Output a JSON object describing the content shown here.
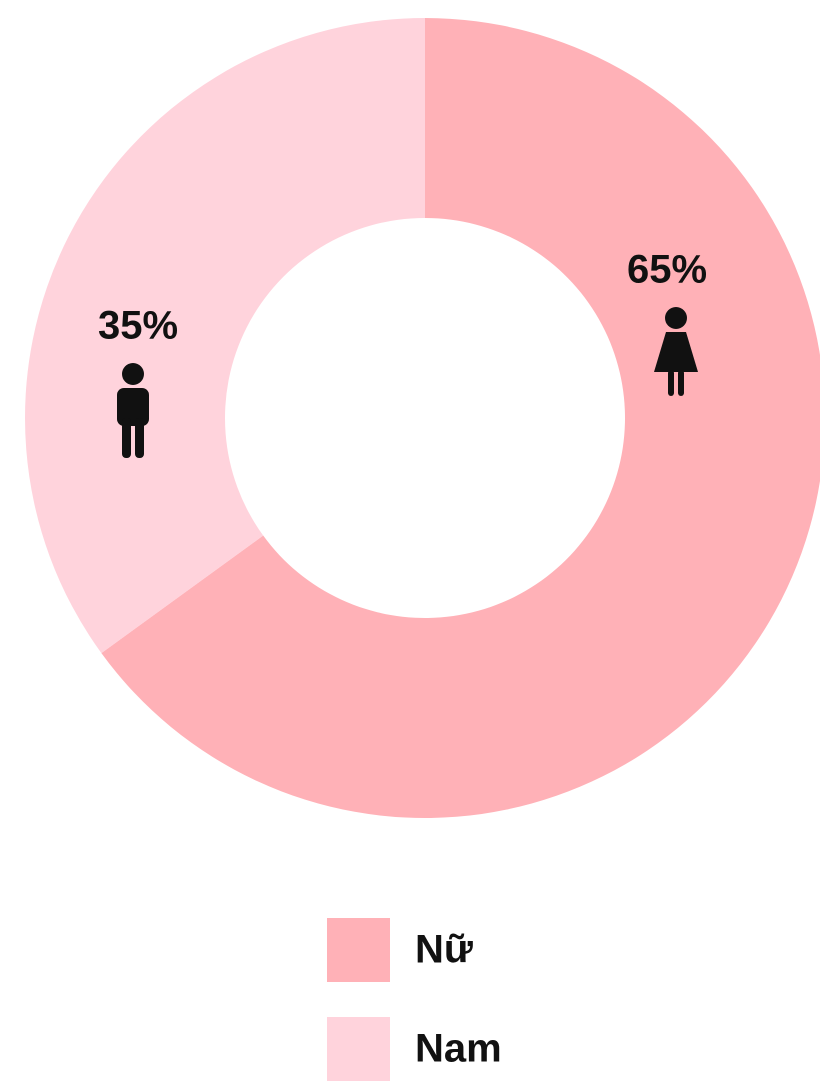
{
  "chart_data": {
    "type": "donut",
    "categories": [
      "Nữ",
      "Nam"
    ],
    "values": [
      65,
      35
    ],
    "value_labels": [
      "65%",
      "35%"
    ],
    "colors": [
      "#ffb1b7",
      "#ffd3dc"
    ]
  }
}
